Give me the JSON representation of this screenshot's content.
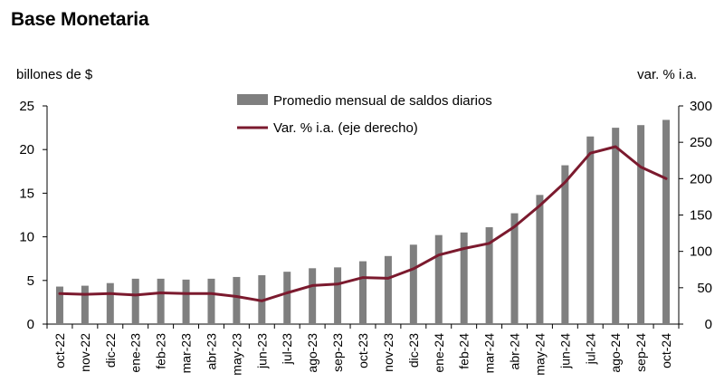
{
  "chart_data": {
    "type": "bar+line",
    "title": "Base Monetaria",
    "ylabel_left": "billones de $",
    "ylabel_right": "var. % i.a.",
    "categories": [
      "oct-22",
      "nov-22",
      "dic-22",
      "ene-23",
      "feb-23",
      "mar-23",
      "abr-23",
      "may-23",
      "jun-23",
      "jul-23",
      "ago-23",
      "sep-23",
      "oct-23",
      "nov-23",
      "dic-23",
      "ene-24",
      "feb-24",
      "mar-24",
      "abr-24",
      "may-24",
      "jun-24",
      "jul-24",
      "ago-24",
      "sep-24",
      "oct-24"
    ],
    "series": [
      {
        "name": "Promedio mensual de saldos diarios",
        "type": "bar",
        "axis": "left",
        "color": "#7f7f7f",
        "values": [
          4.3,
          4.4,
          4.7,
          5.2,
          5.2,
          5.1,
          5.2,
          5.4,
          5.6,
          6.0,
          6.4,
          6.5,
          7.2,
          7.8,
          9.1,
          10.2,
          10.5,
          11.1,
          12.7,
          14.8,
          18.2,
          21.5,
          22.5,
          22.8,
          23.4
        ]
      },
      {
        "name": "Var. % i.a. (eje derecho)",
        "type": "line",
        "axis": "right",
        "color": "#7b1a2e",
        "values": [
          42,
          41,
          42,
          40,
          43,
          42,
          42,
          38,
          32,
          43,
          53,
          55,
          64,
          63,
          76,
          95,
          104,
          111,
          134,
          163,
          195,
          235,
          244,
          216,
          200
        ]
      }
    ],
    "ylim_left": [
      0,
      25
    ],
    "yticks_left": [
      0,
      5,
      10,
      15,
      20,
      25
    ],
    "ylim_right": [
      0,
      300
    ],
    "yticks_right": [
      0,
      50,
      100,
      150,
      200,
      250,
      300
    ],
    "grid": false,
    "legend_position": "top-center"
  }
}
